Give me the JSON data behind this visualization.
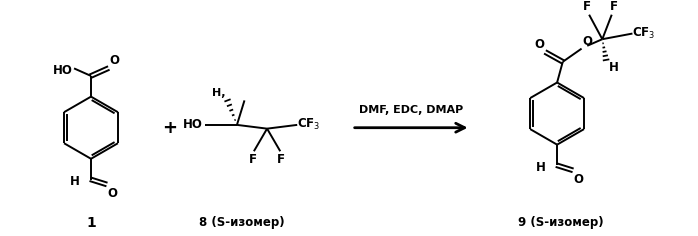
{
  "bg_color": "#ffffff",
  "line_color": "#000000",
  "label1": "1",
  "label2": "8",
  "label2b": "(S-изомер)",
  "label3": "9",
  "label3b": "(S-изомер)",
  "reaction_label": "DMF, EDC, DMAP",
  "plus_sign": "+",
  "figsize": [
    6.98,
    2.36
  ],
  "dpi": 100
}
